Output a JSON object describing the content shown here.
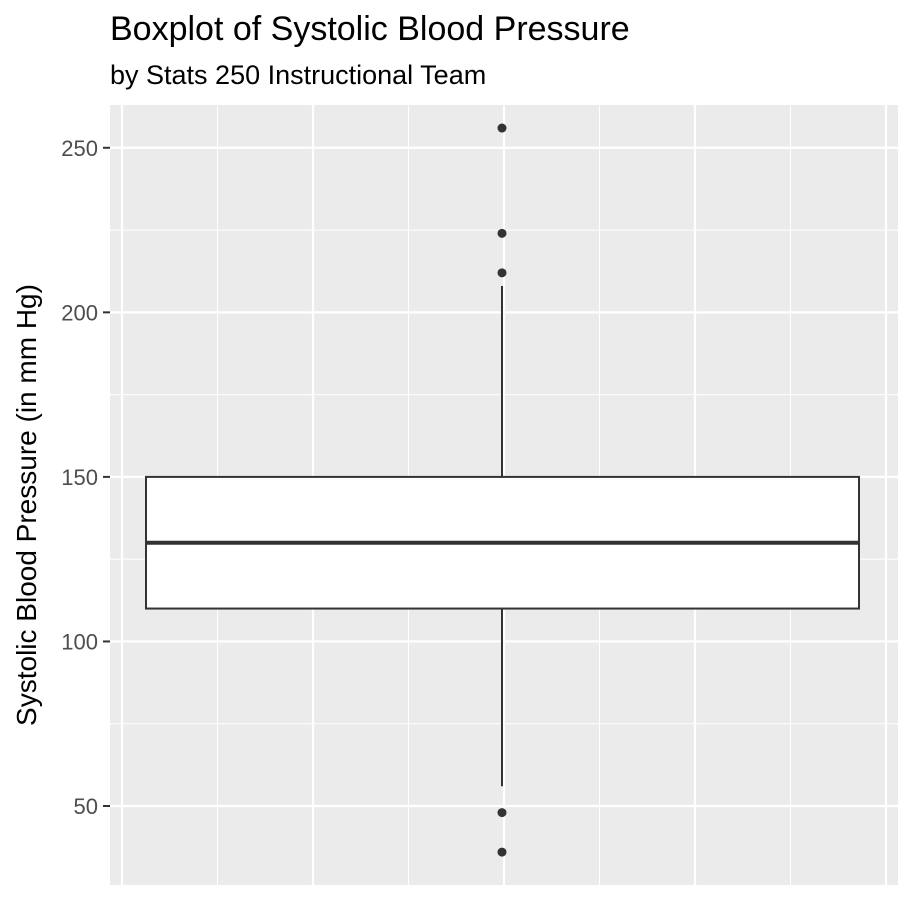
{
  "chart_data": {
    "type": "boxplot",
    "title": "Boxplot of Systolic Blood Pressure",
    "subtitle": "by Stats 250 Instructional Team",
    "xlabel": "",
    "ylabel": "Systolic Blood Pressure (in mm Hg)",
    "ylim": [
      26,
      263
    ],
    "yticks": [
      50,
      100,
      150,
      200,
      250
    ],
    "grid": true,
    "box": {
      "q1": 110,
      "median": 130,
      "q3": 150,
      "whisker_low": 56,
      "whisker_high": 208,
      "outliers": [
        256,
        224,
        212,
        48,
        36
      ]
    },
    "colors": {
      "panel": "#ebebeb",
      "grid": "#ffffff",
      "box_fill": "#ffffff",
      "box_stroke": "#333333",
      "tick_text": "#4d4d4d"
    }
  }
}
